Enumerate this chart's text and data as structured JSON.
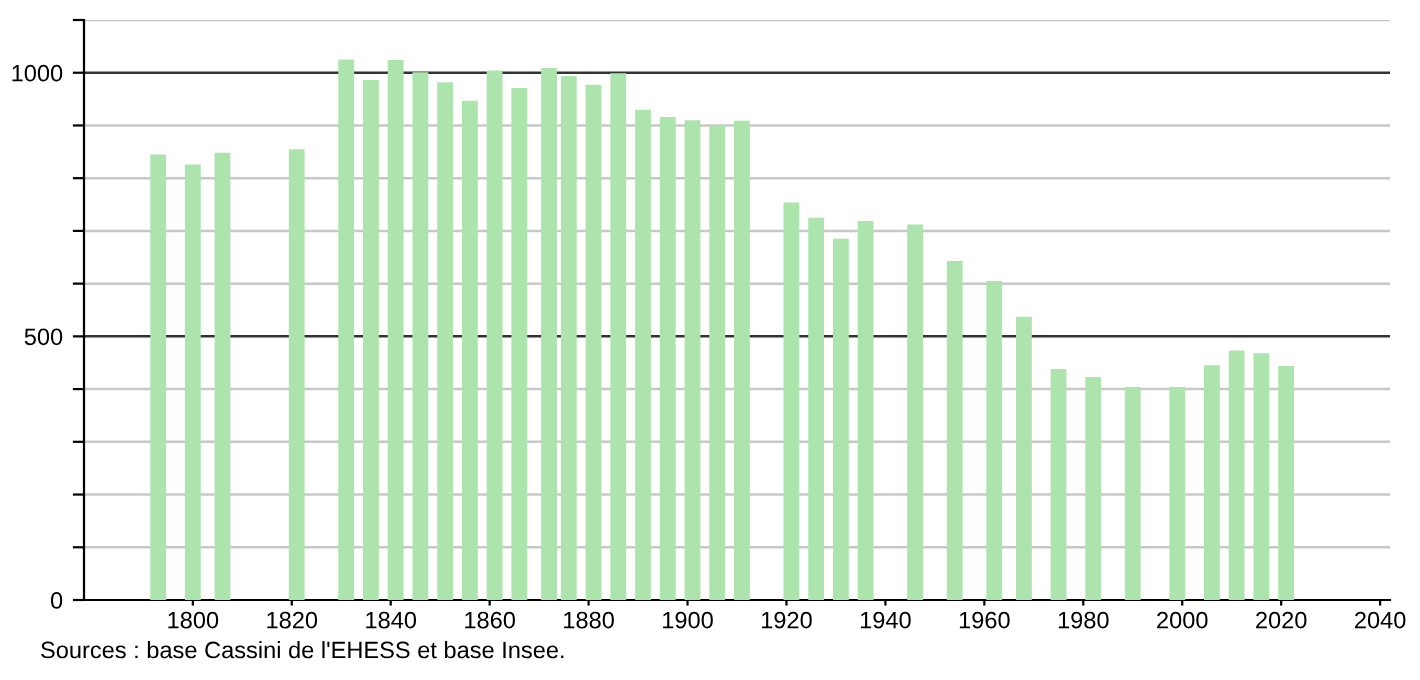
{
  "chart_data": {
    "type": "bar",
    "x": [
      1793,
      1800,
      1806,
      1821,
      1831,
      1836,
      1841,
      1846,
      1851,
      1856,
      1861,
      1866,
      1872,
      1876,
      1881,
      1886,
      1891,
      1896,
      1901,
      1906,
      1911,
      1921,
      1926,
      1931,
      1936,
      1946,
      1954,
      1962,
      1968,
      1975,
      1982,
      1990,
      1999,
      2006,
      2011,
      2016,
      2021
    ],
    "values": [
      845,
      826,
      848,
      855,
      1025,
      986,
      1024,
      1001,
      982,
      947,
      1004,
      971,
      1009,
      994,
      977,
      999,
      930,
      916,
      910,
      901,
      909,
      754,
      725,
      685,
      719,
      712,
      643,
      605,
      537,
      438,
      423,
      404,
      404,
      445,
      473,
      468,
      444
    ],
    "color": "#ade4ad",
    "xlim": [
      1778,
      2042
    ],
    "xticks": [
      1800,
      1820,
      1840,
      1860,
      1880,
      1900,
      1920,
      1940,
      1960,
      1980,
      2000,
      2020,
      2040
    ],
    "ylim": [
      0,
      1100
    ],
    "yticks": [
      0,
      {
        "value": 100,
        "label": null
      },
      {
        "value": 200,
        "label": null
      },
      {
        "value": 300,
        "label": null
      },
      {
        "value": 400,
        "label": null
      },
      500,
      {
        "value": 600,
        "label": null
      },
      {
        "value": 700,
        "label": null
      },
      {
        "value": 800,
        "label": null
      },
      {
        "value": 900,
        "label": null
      },
      1000,
      {
        "value": 1100,
        "label": null
      }
    ],
    "grid": "y",
    "annotations": [
      "Sources : base Cassini de l'EHESS et base Insee."
    ]
  }
}
